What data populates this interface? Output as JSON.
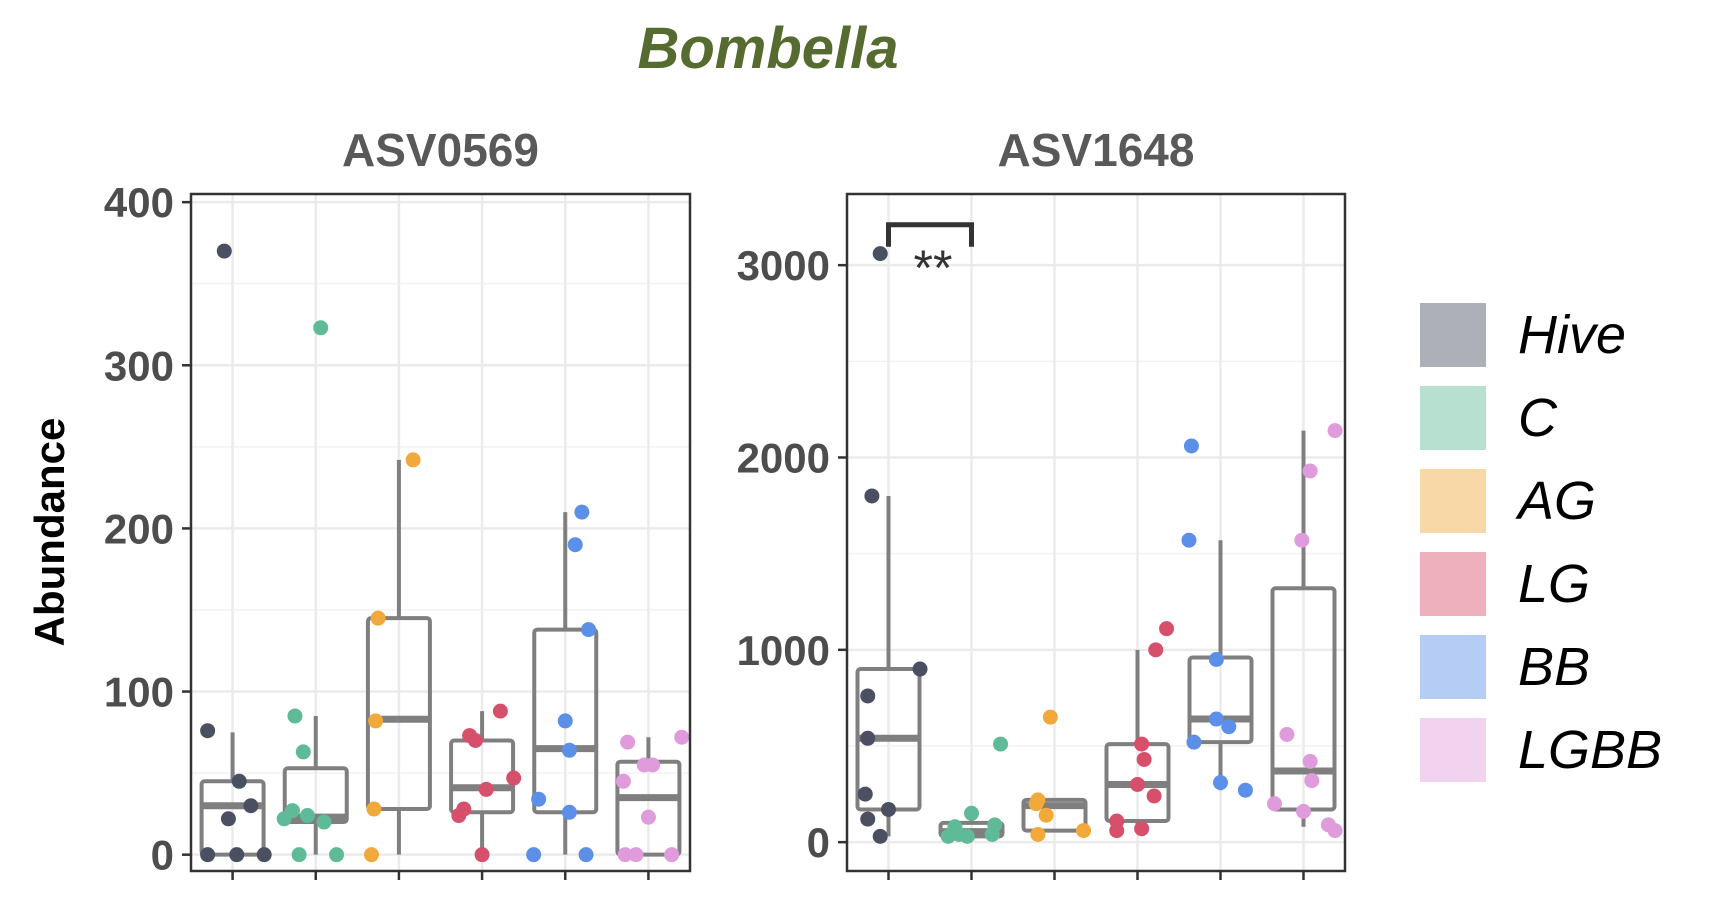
{
  "chart_data": {
    "type": "box",
    "title": "Bombella",
    "ylabel": "Abundance",
    "groups": [
      "Hive",
      "C",
      "AG",
      "LG",
      "BB",
      "LGBB"
    ],
    "colors": {
      "Hive": "#4B4F62",
      "C": "#5FBB97",
      "AG": "#F2A93B",
      "LG": "#D64F6B",
      "BB": "#5B8FE8",
      "LGBB": "#E09BDC"
    },
    "legend_placement": "right",
    "grid": true,
    "panels": [
      {
        "name": "ASV0569",
        "ylim": [
          -10,
          405
        ],
        "yticks": [
          0,
          100,
          200,
          300,
          400
        ],
        "yticklabels": [
          "0",
          "100",
          "200",
          "300",
          "400"
        ],
        "boxes": [
          {
            "group": "Hive",
            "lower": 0,
            "q1": 0,
            "median": 30,
            "q3": 45,
            "upper": 75
          },
          {
            "group": "C",
            "lower": 0,
            "q1": 20,
            "median": 23,
            "q3": 53,
            "upper": 85
          },
          {
            "group": "AG",
            "lower": 0,
            "q1": 28,
            "median": 83,
            "q3": 145,
            "upper": 242
          },
          {
            "group": "LG",
            "lower": 0,
            "q1": 26,
            "median": 41,
            "q3": 70,
            "upper": 88
          },
          {
            "group": "BB",
            "lower": 0,
            "q1": 26,
            "median": 65,
            "q3": 138,
            "upper": 210
          },
          {
            "group": "LGBB",
            "lower": 0,
            "q1": 0,
            "median": 35,
            "q3": 57,
            "upper": 72
          }
        ],
        "points": [
          {
            "group": "Hive",
            "jitter": -0.3,
            "value": 76
          },
          {
            "group": "Hive",
            "jitter": -0.3,
            "value": 0
          },
          {
            "group": "Hive",
            "jitter": -0.1,
            "value": 370
          },
          {
            "group": "Hive",
            "jitter": -0.05,
            "value": 22
          },
          {
            "group": "Hive",
            "jitter": 0.05,
            "value": 0
          },
          {
            "group": "Hive",
            "jitter": 0.08,
            "value": 45
          },
          {
            "group": "Hive",
            "jitter": 0.22,
            "value": 30
          },
          {
            "group": "Hive",
            "jitter": 0.38,
            "value": 0
          },
          {
            "group": "C",
            "jitter": -0.38,
            "value": 22
          },
          {
            "group": "C",
            "jitter": -0.28,
            "value": 27
          },
          {
            "group": "C",
            "jitter": -0.25,
            "value": 85
          },
          {
            "group": "C",
            "jitter": -0.2,
            "value": 0
          },
          {
            "group": "C",
            "jitter": -0.15,
            "value": 63
          },
          {
            "group": "C",
            "jitter": -0.1,
            "value": 24
          },
          {
            "group": "C",
            "jitter": 0.06,
            "value": 323
          },
          {
            "group": "C",
            "jitter": 0.1,
            "value": 20
          },
          {
            "group": "C",
            "jitter": 0.25,
            "value": 0
          },
          {
            "group": "AG",
            "jitter": -0.33,
            "value": 0
          },
          {
            "group": "AG",
            "jitter": -0.3,
            "value": 28
          },
          {
            "group": "AG",
            "jitter": -0.28,
            "value": 82
          },
          {
            "group": "AG",
            "jitter": -0.25,
            "value": 145
          },
          {
            "group": "AG",
            "jitter": 0.17,
            "value": 242
          },
          {
            "group": "LG",
            "jitter": -0.28,
            "value": 24
          },
          {
            "group": "LG",
            "jitter": -0.22,
            "value": 28
          },
          {
            "group": "LG",
            "jitter": -0.15,
            "value": 73
          },
          {
            "group": "LG",
            "jitter": -0.08,
            "value": 70
          },
          {
            "group": "LG",
            "jitter": 0.0,
            "value": 0
          },
          {
            "group": "LG",
            "jitter": 0.05,
            "value": 40
          },
          {
            "group": "LG",
            "jitter": 0.22,
            "value": 88
          },
          {
            "group": "LG",
            "jitter": 0.38,
            "value": 47
          },
          {
            "group": "BB",
            "jitter": -0.38,
            "value": 0
          },
          {
            "group": "BB",
            "jitter": -0.32,
            "value": 34
          },
          {
            "group": "BB",
            "jitter": 0.0,
            "value": 82
          },
          {
            "group": "BB",
            "jitter": 0.05,
            "value": 64
          },
          {
            "group": "BB",
            "jitter": 0.05,
            "value": 26
          },
          {
            "group": "BB",
            "jitter": 0.12,
            "value": 190
          },
          {
            "group": "BB",
            "jitter": 0.2,
            "value": 210
          },
          {
            "group": "BB",
            "jitter": 0.25,
            "value": 0
          },
          {
            "group": "BB",
            "jitter": 0.28,
            "value": 138
          },
          {
            "group": "LGBB",
            "jitter": -0.3,
            "value": 45
          },
          {
            "group": "LGBB",
            "jitter": -0.28,
            "value": 0
          },
          {
            "group": "LGBB",
            "jitter": -0.25,
            "value": 69
          },
          {
            "group": "LGBB",
            "jitter": -0.15,
            "value": 0
          },
          {
            "group": "LGBB",
            "jitter": -0.05,
            "value": 55
          },
          {
            "group": "LGBB",
            "jitter": 0.0,
            "value": 23
          },
          {
            "group": "LGBB",
            "jitter": 0.05,
            "value": 55
          },
          {
            "group": "LGBB",
            "jitter": 0.28,
            "value": 0
          },
          {
            "group": "LGBB",
            "jitter": 0.4,
            "value": 72
          }
        ]
      },
      {
        "name": "ASV1648",
        "ylim": [
          -150,
          3370
        ],
        "yticks": [
          0,
          1000,
          2000,
          3000
        ],
        "yticklabels": [
          "0",
          "1000",
          "2000",
          "3000"
        ],
        "significance": {
          "from": "Hive",
          "to": "C",
          "label": "**",
          "value": 3210
        },
        "boxes": [
          {
            "group": "Hive",
            "lower": 30,
            "q1": 170,
            "median": 540,
            "q3": 900,
            "upper": 1800
          },
          {
            "group": "C",
            "lower": 20,
            "q1": 30,
            "median": 55,
            "q3": 100,
            "upper": 150
          },
          {
            "group": "AG",
            "lower": 60,
            "q1": 60,
            "median": 190,
            "q3": 220,
            "upper": 220
          },
          {
            "group": "LG",
            "lower": 60,
            "q1": 110,
            "median": 300,
            "q3": 510,
            "upper": 1000
          },
          {
            "group": "BB",
            "lower": 270,
            "q1": 520,
            "median": 640,
            "q3": 960,
            "upper": 1570
          },
          {
            "group": "LGBB",
            "lower": 80,
            "q1": 170,
            "median": 370,
            "q3": 1320,
            "upper": 2140
          }
        ],
        "points": [
          {
            "group": "Hive",
            "jitter": -0.28,
            "value": 250
          },
          {
            "group": "Hive",
            "jitter": -0.25,
            "value": 540
          },
          {
            "group": "Hive",
            "jitter": -0.25,
            "value": 120
          },
          {
            "group": "Hive",
            "jitter": -0.25,
            "value": 760
          },
          {
            "group": "Hive",
            "jitter": -0.2,
            "value": 1800
          },
          {
            "group": "Hive",
            "jitter": -0.1,
            "value": 30
          },
          {
            "group": "Hive",
            "jitter": -0.1,
            "value": 3060
          },
          {
            "group": "Hive",
            "jitter": 0.0,
            "value": 170
          },
          {
            "group": "Hive",
            "jitter": 0.38,
            "value": 900
          },
          {
            "group": "C",
            "jitter": -0.28,
            "value": 30
          },
          {
            "group": "C",
            "jitter": -0.2,
            "value": 80
          },
          {
            "group": "C",
            "jitter": -0.15,
            "value": 40
          },
          {
            "group": "C",
            "jitter": -0.05,
            "value": 30
          },
          {
            "group": "C",
            "jitter": 0.0,
            "value": 150
          },
          {
            "group": "C",
            "jitter": 0.25,
            "value": 40
          },
          {
            "group": "C",
            "jitter": 0.28,
            "value": 90
          },
          {
            "group": "C",
            "jitter": 0.35,
            "value": 510
          },
          {
            "group": "AG",
            "jitter": -0.22,
            "value": 200
          },
          {
            "group": "AG",
            "jitter": -0.2,
            "value": 40
          },
          {
            "group": "AG",
            "jitter": -0.2,
            "value": 220
          },
          {
            "group": "AG",
            "jitter": -0.1,
            "value": 140
          },
          {
            "group": "AG",
            "jitter": -0.05,
            "value": 650
          },
          {
            "group": "AG",
            "jitter": 0.35,
            "value": 60
          },
          {
            "group": "LG",
            "jitter": -0.25,
            "value": 60
          },
          {
            "group": "LG",
            "jitter": -0.25,
            "value": 110
          },
          {
            "group": "LG",
            "jitter": 0.0,
            "value": 300
          },
          {
            "group": "LG",
            "jitter": 0.05,
            "value": 510
          },
          {
            "group": "LG",
            "jitter": 0.05,
            "value": 70
          },
          {
            "group": "LG",
            "jitter": 0.08,
            "value": 430
          },
          {
            "group": "LG",
            "jitter": 0.2,
            "value": 240
          },
          {
            "group": "LG",
            "jitter": 0.22,
            "value": 1000
          },
          {
            "group": "LG",
            "jitter": 0.35,
            "value": 1110
          },
          {
            "group": "BB",
            "jitter": -0.35,
            "value": 2060
          },
          {
            "group": "BB",
            "jitter": -0.38,
            "value": 1570
          },
          {
            "group": "BB",
            "jitter": -0.32,
            "value": 520
          },
          {
            "group": "BB",
            "jitter": -0.05,
            "value": 950
          },
          {
            "group": "BB",
            "jitter": -0.05,
            "value": 640
          },
          {
            "group": "BB",
            "jitter": 0.0,
            "value": 310
          },
          {
            "group": "BB",
            "jitter": 0.1,
            "value": 600
          },
          {
            "group": "BB",
            "jitter": 0.3,
            "value": 270
          },
          {
            "group": "LGBB",
            "jitter": -0.35,
            "value": 200
          },
          {
            "group": "LGBB",
            "jitter": -0.2,
            "value": 560
          },
          {
            "group": "LGBB",
            "jitter": -0.02,
            "value": 1570
          },
          {
            "group": "LGBB",
            "jitter": 0.0,
            "value": 160
          },
          {
            "group": "LGBB",
            "jitter": 0.08,
            "value": 1930
          },
          {
            "group": "LGBB",
            "jitter": 0.08,
            "value": 420
          },
          {
            "group": "LGBB",
            "jitter": 0.1,
            "value": 320
          },
          {
            "group": "LGBB",
            "jitter": 0.3,
            "value": 90
          },
          {
            "group": "LGBB",
            "jitter": 0.38,
            "value": 2140
          },
          {
            "group": "LGBB",
            "jitter": 0.38,
            "value": 60
          }
        ]
      }
    ]
  }
}
